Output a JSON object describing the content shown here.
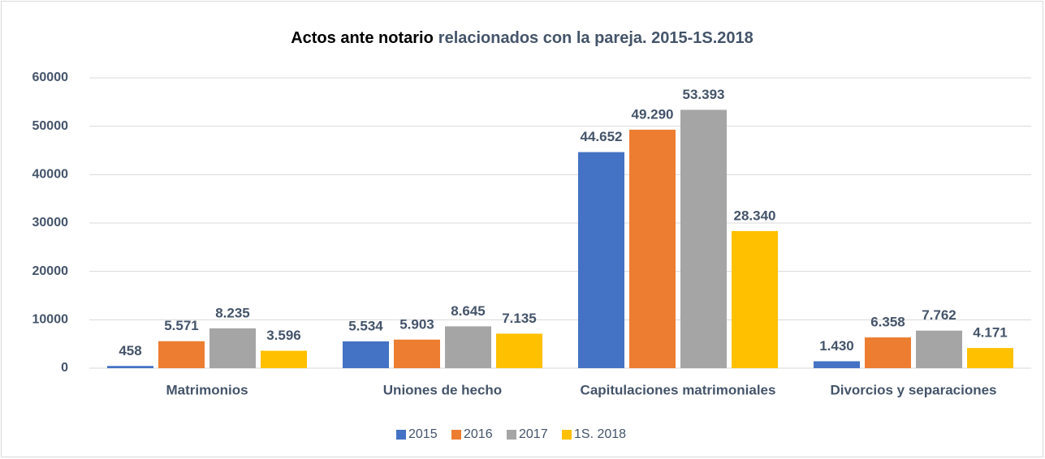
{
  "chart_data": {
    "type": "bar",
    "title": [
      "Actos ante notario",
      "relacionados con la pareja. 2015-1S.2018"
    ],
    "categories": [
      "Matrimonios",
      "Uniones de hecho",
      "Capitulaciones matrimoniales",
      "Divorcios y separaciones"
    ],
    "series": [
      {
        "name": "2015",
        "color": "#4472c4",
        "values": [
          458,
          5534,
          44652,
          1430
        ],
        "value_labels": [
          "458",
          "5.534",
          "44.652",
          "1.430"
        ]
      },
      {
        "name": "2016",
        "color": "#ed7d31",
        "values": [
          5571,
          5903,
          49290,
          6358
        ],
        "value_labels": [
          "5.571",
          "5.903",
          "49.290",
          "6.358"
        ]
      },
      {
        "name": "2017",
        "color": "#a5a5a5",
        "values": [
          8235,
          8645,
          53393,
          7762
        ],
        "value_labels": [
          "8.235",
          "8.645",
          "53.393",
          "7.762"
        ]
      },
      {
        "name": "1S. 2018",
        "color": "#ffc000",
        "values": [
          3596,
          7135,
          28340,
          4171
        ],
        "value_labels": [
          "3.596",
          "7.135",
          "28.340",
          "4.171"
        ]
      }
    ],
    "ylim": [
      0,
      60000
    ],
    "yticks": [
      0,
      10000,
      20000,
      30000,
      40000,
      50000,
      60000
    ],
    "grid": true,
    "legend": "bottom"
  }
}
